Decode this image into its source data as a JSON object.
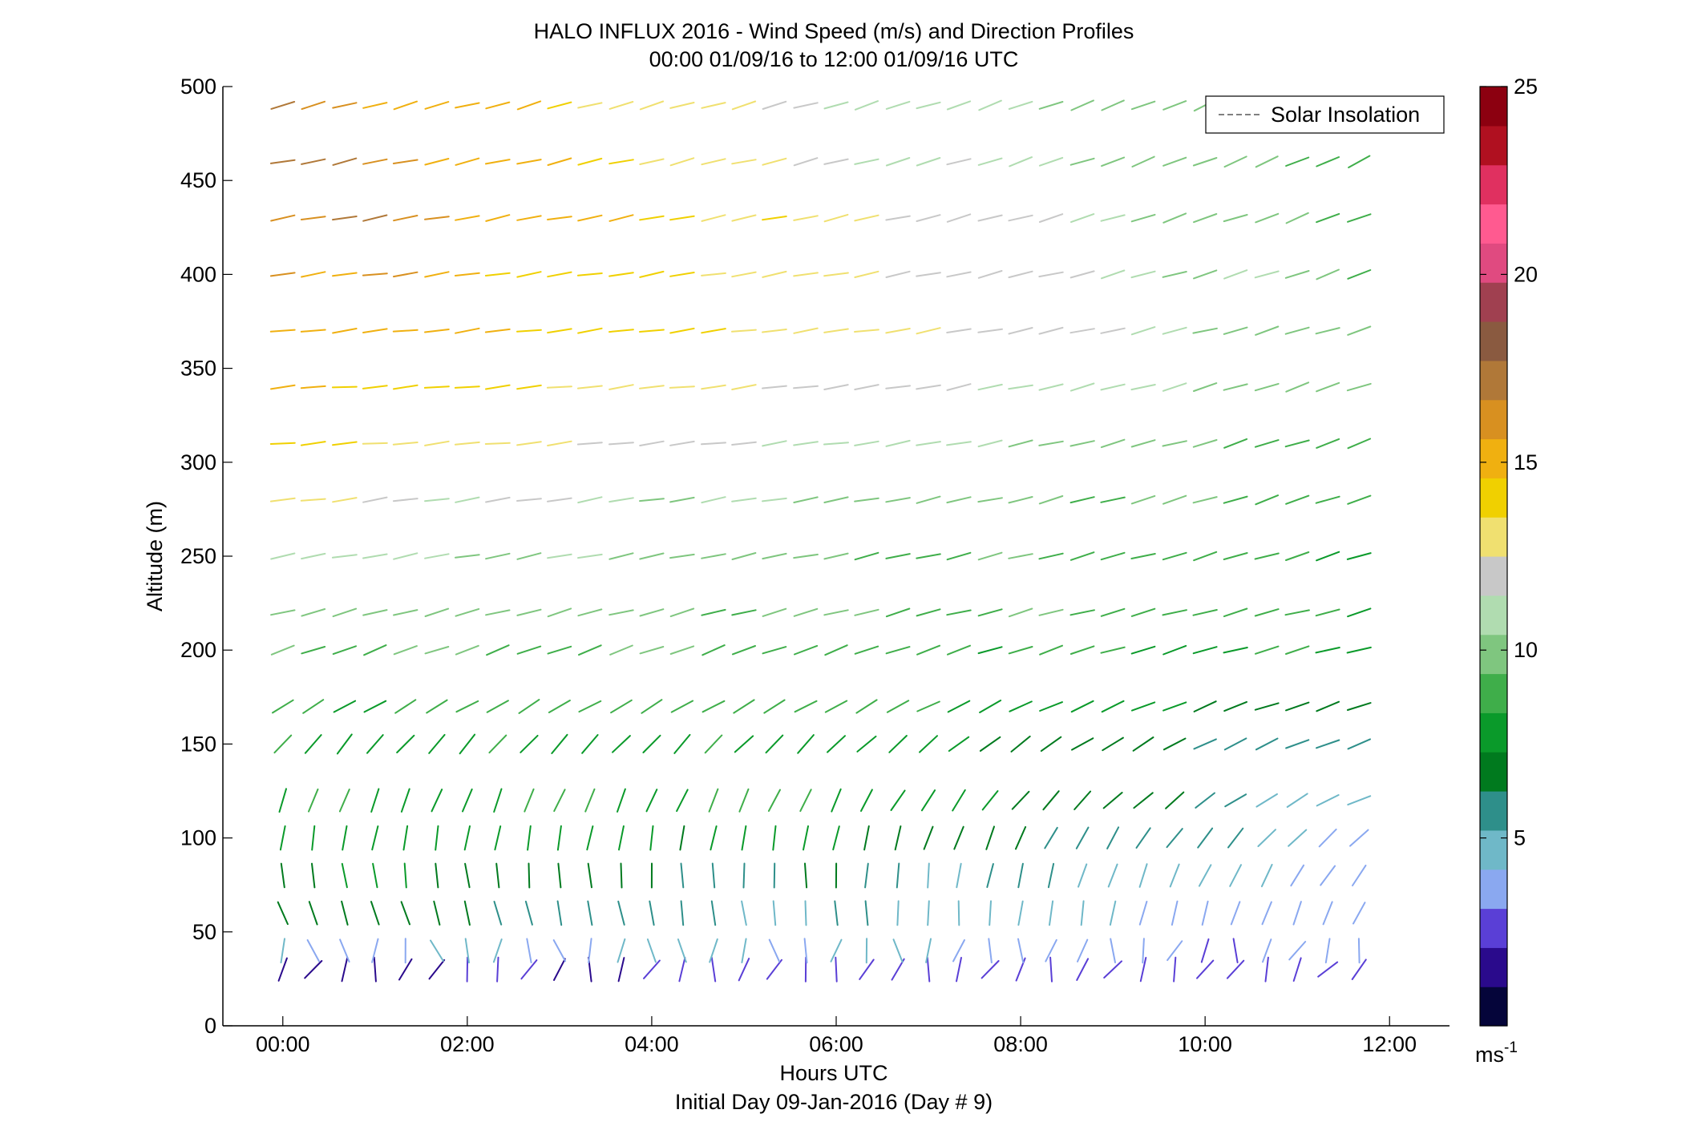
{
  "chart_data": {
    "type": "wind-barb",
    "title": "HALO INFLUX 2016 - Wind Speed (m/s) and Direction Profiles",
    "subtitle": "00:00 01/09/16 to 12:00 01/09/16  UTC",
    "xlabel": "Hours UTC",
    "xlabel2": "Initial Day 09-Jan-2016 (Day # 9)",
    "ylabel": "Altitude (m)",
    "xlim": [
      -0.65,
      12.65
    ],
    "ylim": [
      0,
      500
    ],
    "x_ticks": [
      0,
      2,
      4,
      6,
      8,
      10,
      12
    ],
    "x_tick_labels": [
      "00:00",
      "02:00",
      "04:00",
      "06:00",
      "08:00",
      "10:00",
      "12:00"
    ],
    "y_ticks": [
      0,
      50,
      100,
      150,
      200,
      250,
      300,
      350,
      400,
      450,
      500
    ],
    "y_tick_labels": [
      "0",
      "50",
      "100",
      "150",
      "200",
      "250",
      "300",
      "350",
      "400",
      "450",
      "500"
    ],
    "legend": {
      "entries": [
        "Solar Insolation"
      ],
      "placement": "top-right"
    },
    "colorbar": {
      "range": [
        0,
        25
      ],
      "ticks": [
        5,
        10,
        15,
        20,
        25
      ],
      "tick_labels": [
        "5",
        "10",
        "15",
        "20",
        "25"
      ],
      "unit": "ms",
      "unit_exp": "-1",
      "colors": [
        "#05053a",
        "#2a0a8c",
        "#5a3fd6",
        "#8aa8f0",
        "#6fb8c8",
        "#2e8f8a",
        "#007a1e",
        "#0a9a2a",
        "#3fae4a",
        "#7fc67f",
        "#b0dcb0",
        "#c8c8c8",
        "#f0e070",
        "#f0d000",
        "#f0b010",
        "#d89020",
        "#b07838",
        "#8a5a40",
        "#a04050",
        "#e04a80",
        "#ff5a90",
        "#e03060",
        "#b01020",
        "#8c0010"
      ]
    },
    "times_hours": [
      0.0,
      0.33,
      0.67,
      1.0,
      1.33,
      1.67,
      2.0,
      2.33,
      2.67,
      3.0,
      3.33,
      3.67,
      4.0,
      4.33,
      4.67,
      5.0,
      5.33,
      5.67,
      6.0,
      6.33,
      6.67,
      7.0,
      7.33,
      7.67,
      8.0,
      8.33,
      8.67,
      9.0,
      9.33,
      9.67,
      10.0,
      10.33,
      10.67,
      11.0,
      11.33,
      11.67
    ],
    "altitudes_m": [
      30,
      40,
      60,
      80,
      100,
      120,
      150,
      170,
      200,
      220,
      250,
      280,
      310,
      340,
      370,
      400,
      430,
      460,
      490
    ],
    "regimes": {
      "direction_deg": [
        [
          200,
          170,
          160,
          170,
          190,
          200,
          220,
          240,
          250,
          255,
          260,
          262,
          265,
          265,
          263,
          262,
          260,
          258,
          255
        ],
        [
          195,
          180,
          175,
          180,
          190,
          205,
          225,
          240,
          250,
          255,
          258,
          260,
          262,
          262,
          262,
          260,
          258,
          256,
          254
        ],
        [
          210,
          200,
          205,
          215,
          230,
          245,
          250,
          252,
          255,
          255,
          252,
          250,
          250,
          250,
          252,
          250,
          248,
          245,
          244
        ]
      ],
      "speed_ms": [
        [
          1.5,
          4.0,
          7.0,
          7.5,
          8.0,
          8.0,
          8.0,
          8.5,
          9.5,
          10.0,
          11.0,
          12.5,
          14.0,
          15.0,
          15.5,
          16.0,
          17.0,
          17.0,
          16.5
        ],
        [
          2.5,
          4.5,
          5.0,
          6.0,
          7.5,
          8.5,
          8.0,
          9.0,
          9.0,
          9.5,
          9.5,
          10.0,
          11.0,
          12.5,
          13.5,
          13.0,
          13.0,
          12.0,
          11.5
        ],
        [
          2.5,
          3.0,
          3.5,
          3.8,
          4.2,
          4.8,
          5.5,
          6.5,
          8.0,
          8.5,
          8.5,
          9.0,
          9.0,
          9.5,
          9.5,
          9.5,
          9.0,
          9.0,
          9.0
        ]
      ]
    }
  }
}
